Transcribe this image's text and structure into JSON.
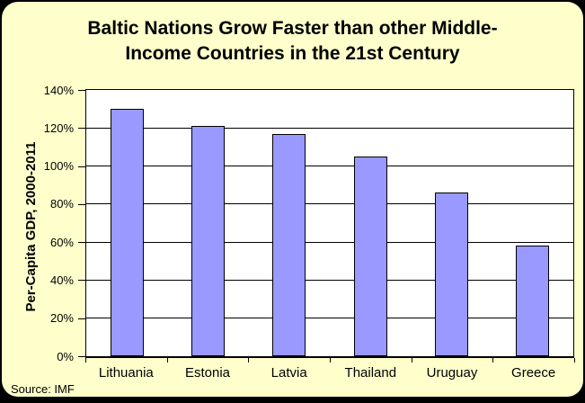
{
  "window": {
    "background": "#000000"
  },
  "card": {
    "background": "#FFFFCC"
  },
  "title": {
    "lines": [
      "Baltic Nations Grow Faster than other Middle-",
      "Income Countries in the 21st Century"
    ]
  },
  "source": "Source: IMF",
  "chart_data": {
    "type": "bar",
    "title": "Baltic Nations Grow Faster than other Middle-Income Countries in the 21st Century",
    "categories": [
      "Lithuania",
      "Estonia",
      "Latvia",
      "Thailand",
      "Uruguay",
      "Greece"
    ],
    "values": [
      130,
      121,
      117,
      105,
      86,
      58
    ],
    "value_unit": "%",
    "xlabel": "",
    "ylabel": "Per-Capita GDP, 2000-2011",
    "ylim": [
      0,
      140
    ],
    "ytick_step": 20,
    "yticks": [
      "0%",
      "20%",
      "40%",
      "60%",
      "80%",
      "100%",
      "120%",
      "140%"
    ],
    "grid": true,
    "legend": false,
    "bar_color": "#9999FF",
    "bar_border_color": "#000000",
    "plot_background": "#FFFFFF",
    "source": "Source: IMF"
  }
}
